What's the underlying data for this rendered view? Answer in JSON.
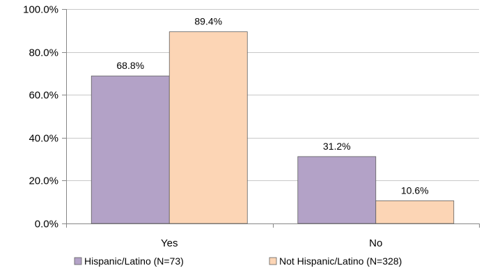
{
  "chart_data": {
    "type": "bar",
    "categories": [
      "Yes",
      "No"
    ],
    "series": [
      {
        "name": "Hispanic/Latino (N=73)",
        "values": [
          68.8,
          31.2
        ],
        "color": "#b3a2c7"
      },
      {
        "name": "Not Hispanic/Latino (N=328)",
        "values": [
          89.4,
          10.6
        ],
        "color": "#fcd5b5"
      }
    ],
    "data_labels": [
      [
        "68.8%",
        "31.2%"
      ],
      [
        "89.4%",
        "10.6%"
      ]
    ],
    "yticks": [
      "0.0%",
      "20.0%",
      "40.0%",
      "60.0%",
      "80.0%",
      "100.0%"
    ],
    "ylim": [
      0,
      100
    ],
    "grid": true,
    "legend_position": "bottom",
    "title": "",
    "xlabel": "",
    "ylabel": ""
  }
}
